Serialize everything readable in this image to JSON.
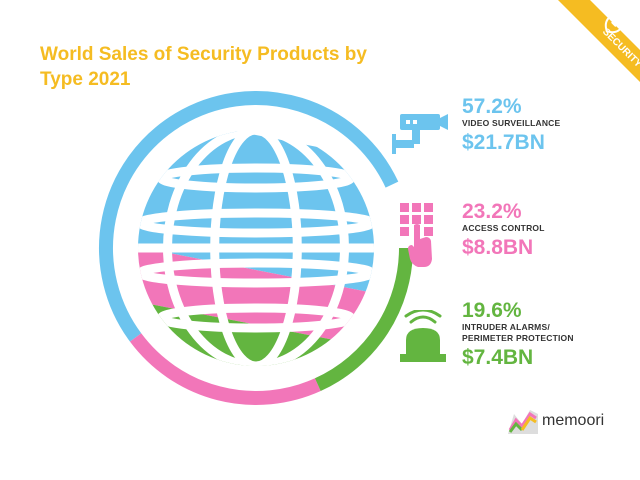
{
  "title": "World Sales of Security Products by Type 2021",
  "badge": "SECURITY",
  "brand": "memoori",
  "colors": {
    "title": "#F5BC22",
    "video": "#6CC4EE",
    "access": "#F276B9",
    "intruder": "#63B540",
    "badge_bg": "#F5BC22"
  },
  "stats": [
    {
      "percent": "57.2%",
      "category": "VIDEO SURVEILLANCE",
      "amount": "$21.7BN",
      "icon": "cctv-camera-icon"
    },
    {
      "percent": "23.2%",
      "category": "ACCESS CONTROL",
      "amount": "$8.8BN",
      "icon": "keypad-hand-icon"
    },
    {
      "percent": "19.6%",
      "category": "INTRUDER ALARMS/ PERIMETER PROTECTION",
      "amount": "$7.4BN",
      "icon": "alarm-siren-icon"
    }
  ],
  "chart_data": {
    "type": "pie",
    "title": "World Sales of Security Products by Type 2021",
    "categories": [
      "Video Surveillance",
      "Access Control",
      "Intruder Alarms/Perimeter Protection"
    ],
    "values": [
      57.2,
      23.2,
      19.6
    ],
    "amounts": [
      "$21.7BN",
      "$8.8BN",
      "$7.4BN"
    ],
    "colors": [
      "#6CC4EE",
      "#F276B9",
      "#63B540"
    ]
  }
}
